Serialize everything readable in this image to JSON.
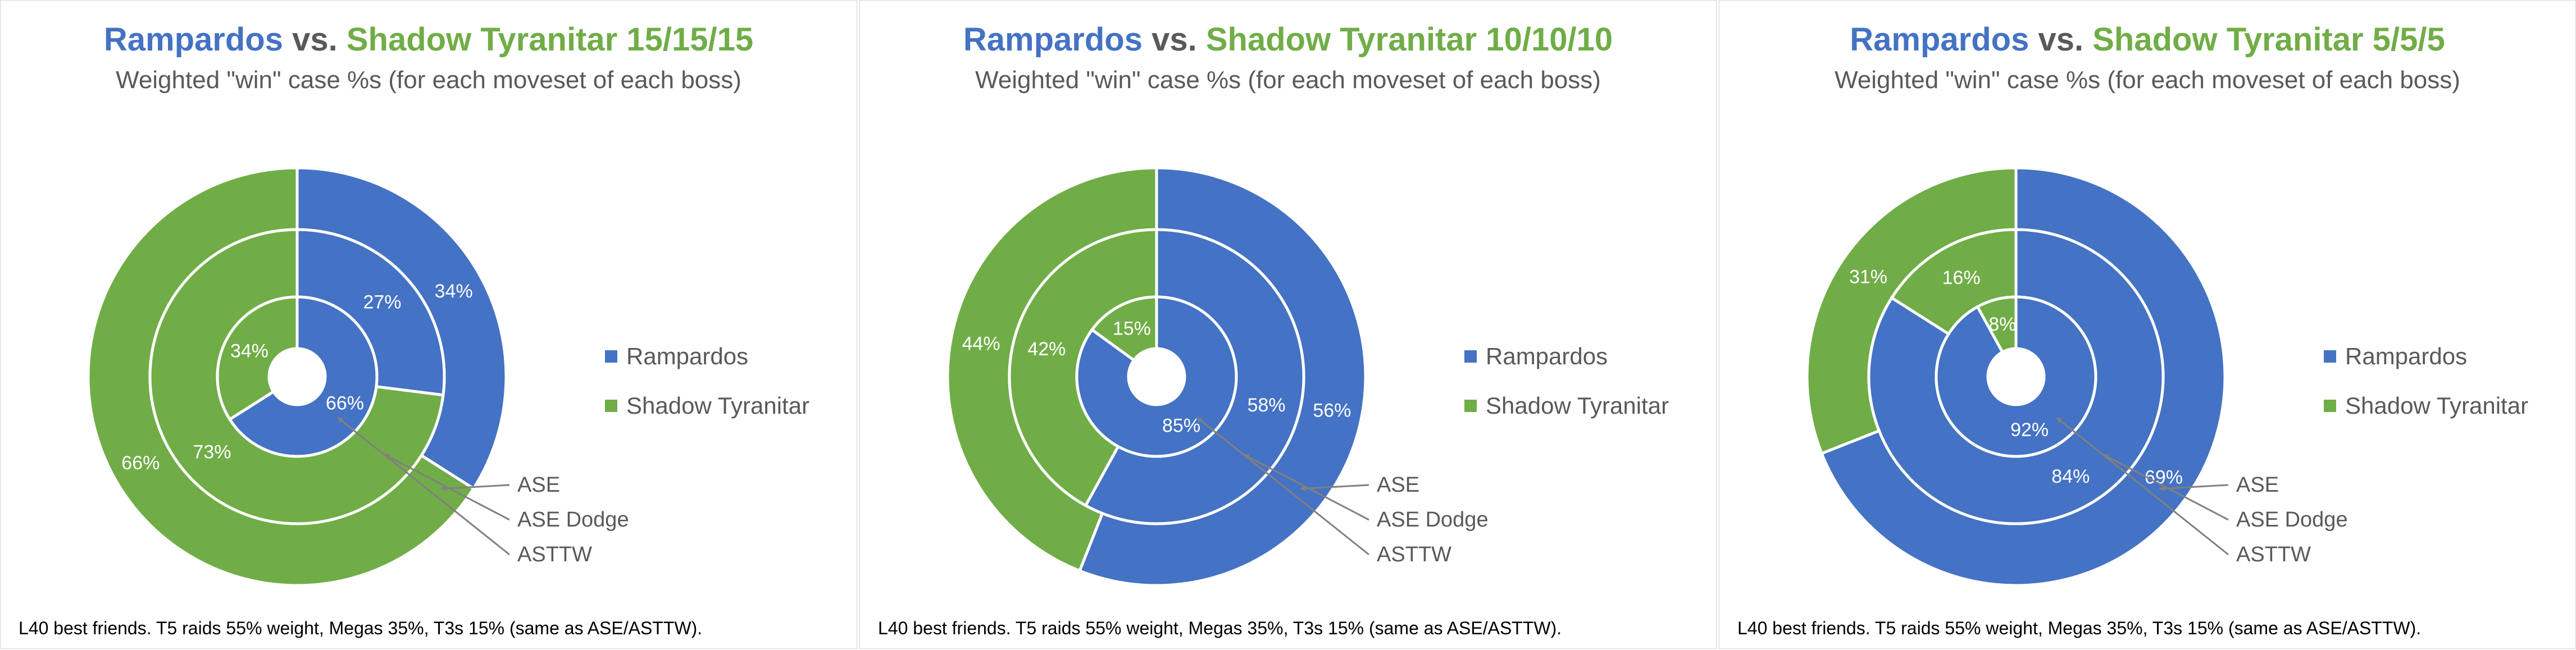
{
  "colors": {
    "rampardos": "#4472c4",
    "shadow_tyranitar": "#70ad47",
    "arrow": "#808080",
    "label_text": "#595959"
  },
  "chart_data": [
    {
      "type": "nested-donut",
      "title_part1": "Rampardos",
      "title_vs": " vs. ",
      "title_part2": "Shadow Tyranitar 15/15/15",
      "subtitle": "Weighted \"win\" case %s (for each moveset of each boss)",
      "legend": [
        "Rampardos",
        "Shadow Tyranitar"
      ],
      "rings": [
        {
          "name": "ASE",
          "values": [
            34,
            66
          ],
          "labels": [
            "34%",
            "66%"
          ]
        },
        {
          "name": "ASE Dodge",
          "values": [
            27,
            73
          ],
          "labels": [
            "27%",
            "73%"
          ]
        },
        {
          "name": "ASTTW",
          "values": [
            66,
            34
          ],
          "labels": [
            "66%",
            "34%"
          ]
        }
      ],
      "footnote": "L40 best friends. T5 raids 55% weight, Megas 35%, T3s 15% (same as ASE/ASTTW)."
    },
    {
      "type": "nested-donut",
      "title_part1": "Rampardos",
      "title_vs": " vs. ",
      "title_part2": "Shadow Tyranitar 10/10/10",
      "subtitle": "Weighted \"win\" case %s (for each moveset of each boss)",
      "legend": [
        "Rampardos",
        "Shadow Tyranitar"
      ],
      "rings": [
        {
          "name": "ASE",
          "values": [
            56,
            44
          ],
          "labels": [
            "56%",
            "44%"
          ]
        },
        {
          "name": "ASE Dodge",
          "values": [
            58,
            42
          ],
          "labels": [
            "58%",
            "42%"
          ]
        },
        {
          "name": "ASTTW",
          "values": [
            85,
            15
          ],
          "labels": [
            "85%",
            "15%"
          ]
        }
      ],
      "footnote": "L40 best friends. T5 raids 55% weight, Megas 35%, T3s 15% (same as ASE/ASTTW)."
    },
    {
      "type": "nested-donut",
      "title_part1": "Rampardos",
      "title_vs": " vs. ",
      "title_part2": "Shadow Tyranitar 5/5/5",
      "subtitle": "Weighted \"win\" case %s (for each moveset of each boss)",
      "legend": [
        "Rampardos",
        "Shadow Tyranitar"
      ],
      "rings": [
        {
          "name": "ASE",
          "values": [
            69,
            31
          ],
          "labels": [
            "69%",
            "31%"
          ]
        },
        {
          "name": "ASE Dodge",
          "values": [
            84,
            16
          ],
          "labels": [
            "84%",
            "16%"
          ]
        },
        {
          "name": "ASTTW",
          "values": [
            92,
            8
          ],
          "labels": [
            "92%",
            "8%"
          ]
        }
      ],
      "footnote": "L40 best friends. T5 raids 55% weight, Megas 35%, T3s 15% (same as ASE/ASTTW)."
    }
  ]
}
